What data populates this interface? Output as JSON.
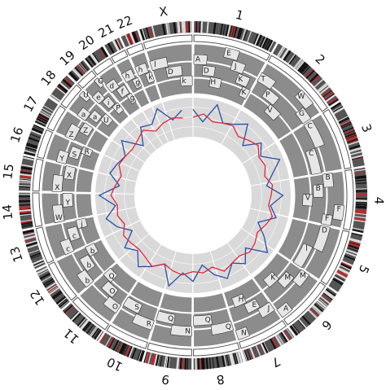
{
  "chromosomes": [
    "1",
    "2",
    "3",
    "4",
    "5",
    "6",
    "7",
    "8",
    "9",
    "10",
    "11",
    "12",
    "13",
    "14",
    "15",
    "16",
    "17",
    "18",
    "19",
    "20",
    "21",
    "22",
    "X"
  ],
  "segments": [
    {
      "label": "A",
      "chromosome": 0
    },
    {
      "label": "D",
      "chromosome": 0
    },
    {
      "label": "H",
      "chromosome": 0
    },
    {
      "label": "E",
      "chromosome": 0
    },
    {
      "label": "J",
      "chromosome": 0
    },
    {
      "label": "K",
      "chromosome": 0
    },
    {
      "label": "K",
      "chromosome": 0
    },
    {
      "label": "T",
      "chromosome": 1
    },
    {
      "label": "P",
      "chromosome": 1
    },
    {
      "label": "V",
      "chromosome": 1
    },
    {
      "label": "W",
      "chromosome": 1
    },
    {
      "label": "G",
      "chromosome": 1
    },
    {
      "label": "C",
      "chromosome": 2
    },
    {
      "label": "C",
      "chromosome": 2
    },
    {
      "label": "B",
      "chromosome": 3
    },
    {
      "label": "B",
      "chromosome": 3
    },
    {
      "label": "V",
      "chromosome": 3
    },
    {
      "label": "F",
      "chromosome": 3
    },
    {
      "label": "F",
      "chromosome": 3
    },
    {
      "label": "D",
      "chromosome": 4
    },
    {
      "label": "l",
      "chromosome": 4
    },
    {
      "label": "M",
      "chromosome": 5
    },
    {
      "label": "M",
      "chromosome": 5
    },
    {
      "label": "K",
      "chromosome": 5
    },
    {
      "label": "A",
      "chromosome": 5
    },
    {
      "label": "J",
      "chromosome": 6
    },
    {
      "label": "E",
      "chromosome": 6
    },
    {
      "label": "H",
      "chromosome": 6
    },
    {
      "label": "N",
      "chromosome": 6
    },
    {
      "label": "Q",
      "chromosome": 7
    },
    {
      "label": "Q",
      "chromosome": 7
    },
    {
      "label": "N",
      "chromosome": 8
    },
    {
      "label": "Q",
      "chromosome": 8
    },
    {
      "label": "R",
      "chromosome": 9
    },
    {
      "label": "S",
      "chromosome": 9
    },
    {
      "label": "O",
      "chromosome": 10
    },
    {
      "label": "O",
      "chromosome": 10
    },
    {
      "label": "Q",
      "chromosome": 10
    },
    {
      "label": "b",
      "chromosome": 11
    },
    {
      "label": "b",
      "chromosome": 11
    },
    {
      "label": "b",
      "chromosome": 11
    },
    {
      "label": "c",
      "chromosome": 12
    },
    {
      "label": "c",
      "chromosome": 12
    },
    {
      "label": "j",
      "chromosome": 12
    },
    {
      "label": "W",
      "chromosome": 13
    },
    {
      "label": "Y",
      "chromosome": 13
    },
    {
      "label": "X",
      "chromosome": 14
    },
    {
      "label": "X",
      "chromosome": 14
    },
    {
      "label": "Y",
      "chromosome": 15
    },
    {
      "label": "S",
      "chromosome": 15
    },
    {
      "label": "R",
      "chromosome": 15
    },
    {
      "label": "Z",
      "chromosome": 16
    },
    {
      "label": "Z",
      "chromosome": 16
    },
    {
      "label": "a",
      "chromosome": 17
    },
    {
      "label": "a",
      "chromosome": 17
    },
    {
      "label": "U",
      "chromosome": 17
    },
    {
      "label": "U",
      "chromosome": 17
    },
    {
      "label": "e",
      "chromosome": 18
    },
    {
      "label": "i",
      "chromosome": 18
    },
    {
      "label": "P",
      "chromosome": 18
    },
    {
      "label": "G",
      "chromosome": 18
    },
    {
      "label": "d",
      "chromosome": 19
    },
    {
      "label": "f",
      "chromosome": 19
    },
    {
      "label": "g",
      "chromosome": 19
    },
    {
      "label": "h",
      "chromosome": 20
    },
    {
      "label": "g",
      "chromosome": 20
    },
    {
      "label": "h",
      "chromosome": 21
    },
    {
      "label": "k",
      "chromosome": 21
    },
    {
      "label": "l",
      "chromosome": 22
    },
    {
      "label": "D",
      "chromosome": 22
    },
    {
      "label": "k",
      "chromosome": 22
    }
  ],
  "tracks": [
    {
      "color": "#2a4fa8",
      "values": [
        0.7,
        0.4,
        0.9,
        0.5,
        0.6,
        0.8,
        0.3,
        0.7,
        0.5,
        0.9,
        0.6,
        0.4,
        0.8,
        0.5,
        0.7,
        0.3,
        0.6,
        0.9,
        0.4,
        0.7,
        0.5,
        0.8,
        0.6,
        0.3,
        0.7,
        0.5,
        0.9,
        0.4,
        0.6,
        0.8,
        0.5,
        0.7,
        0.3,
        0.6,
        0.8,
        0.5,
        0.9,
        0.4,
        0.7,
        0.6,
        0.5,
        0.8,
        0.3,
        0.7,
        0.6,
        0.9,
        0.5,
        0.7
      ]
    },
    {
      "color": "#e0283a",
      "values": [
        0.5,
        0.6,
        0.45,
        0.5,
        0.55,
        0.4,
        0.5,
        0.6,
        0.45,
        0.5,
        0.4,
        0.55,
        0.5,
        0.45,
        0.6,
        0.5,
        0.4,
        0.5,
        0.55,
        0.45,
        0.5,
        0.6,
        0.4,
        0.5,
        0.45,
        0.55,
        0.5,
        0.4,
        0.6,
        0.5,
        0.45,
        0.5,
        0.55,
        0.4,
        0.5,
        0.45,
        0.6,
        0.5,
        0.4,
        0.55,
        0.5,
        0.45,
        0.5,
        0.6,
        0.4,
        0.5,
        0.55,
        0.5
      ]
    }
  ]
}
